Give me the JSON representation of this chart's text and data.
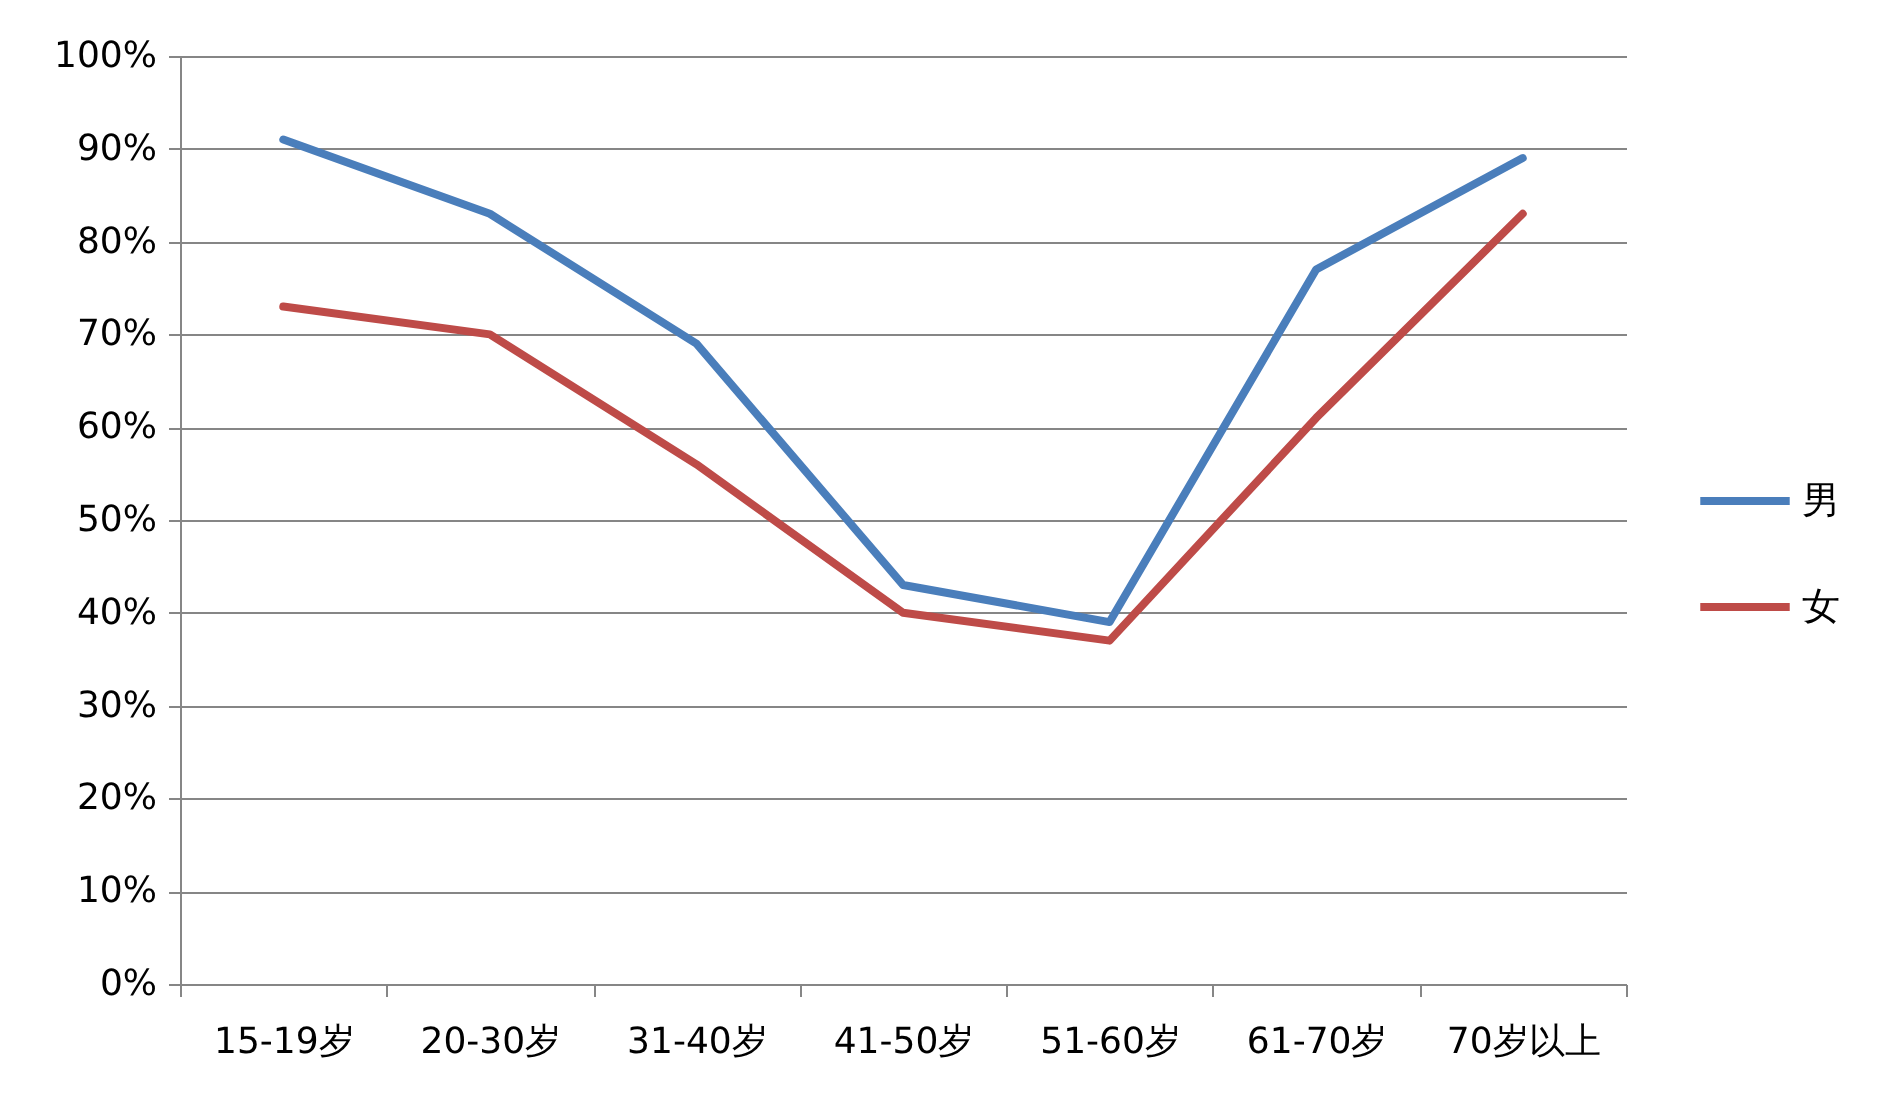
{
  "chart_data": {
    "type": "line",
    "categories": [
      "15-19岁",
      "20-30岁",
      "31-40岁",
      "41-50岁",
      "51-60岁",
      "61-70岁",
      "70岁以上"
    ],
    "series": [
      {
        "name": "男",
        "color": "#4a7ebb",
        "values": [
          91,
          83,
          69,
          43,
          39,
          77,
          89
        ]
      },
      {
        "name": "女",
        "color": "#be4b48",
        "values": [
          73,
          70,
          56,
          40,
          37,
          61,
          83
        ]
      }
    ],
    "ylim": [
      0,
      100
    ],
    "yticks": [
      {
        "value": 0,
        "label": "0%"
      },
      {
        "value": 10,
        "label": "10%"
      },
      {
        "value": 20,
        "label": "20%"
      },
      {
        "value": 30,
        "label": "30%"
      },
      {
        "value": 40,
        "label": "40%"
      },
      {
        "value": 50,
        "label": "50%"
      },
      {
        "value": 60,
        "label": "60%"
      },
      {
        "value": 70,
        "label": "70%"
      },
      {
        "value": 80,
        "label": "80%"
      },
      {
        "value": 90,
        "label": "90%"
      },
      {
        "value": 100,
        "label": "100%"
      }
    ],
    "grid": "y",
    "legend": "right"
  }
}
